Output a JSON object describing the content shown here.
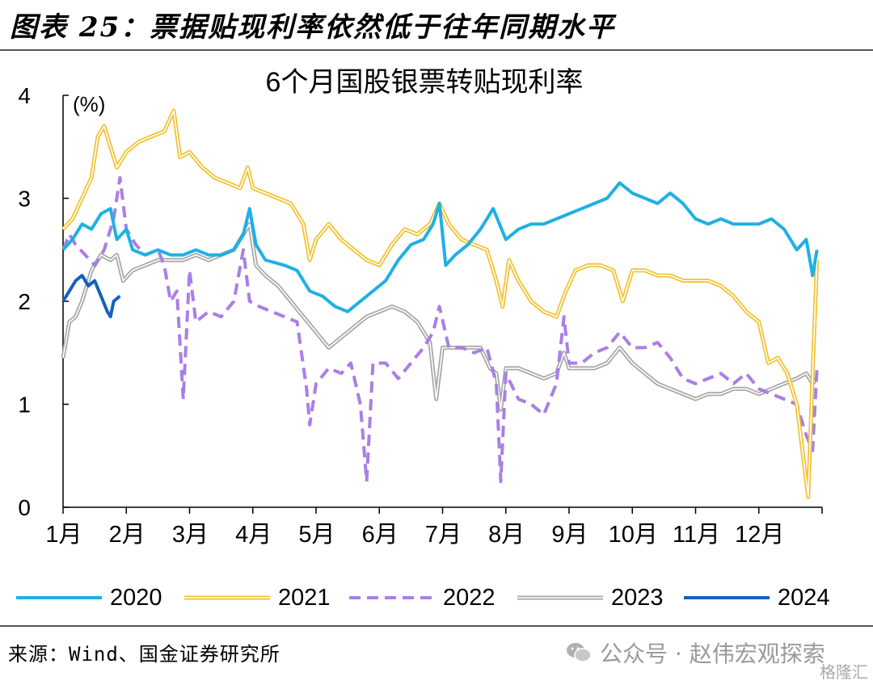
{
  "header": {
    "figure_title": "图表 25：票据贴现利率依然低于往年同期水平"
  },
  "source": "来源：Wind、国金证券研究所",
  "watermark": {
    "text": "公众号 · 赵伟宏观探索",
    "icon": "wechat-icon"
  },
  "logo_text": "格隆汇",
  "chart_data": {
    "type": "line",
    "title": "6个月国股银票转贴现利率",
    "ylabel": "(%)",
    "ylim": [
      0,
      4
    ],
    "yticks": [
      "0",
      "1",
      "2",
      "3",
      "4"
    ],
    "xlim": [
      1,
      13
    ],
    "categories": [
      "1月",
      "2月",
      "3月",
      "4月",
      "5月",
      "6月",
      "7月",
      "8月",
      "9月",
      "10月",
      "11月",
      "12月"
    ],
    "legend_position": "bottom",
    "grid": false,
    "series": [
      {
        "name": "2020",
        "color": "#1fb0e6",
        "style": "solid",
        "points": [
          [
            1.0,
            2.5
          ],
          [
            1.15,
            2.6
          ],
          [
            1.3,
            2.75
          ],
          [
            1.45,
            2.7
          ],
          [
            1.6,
            2.85
          ],
          [
            1.75,
            2.9
          ],
          [
            1.85,
            2.6
          ],
          [
            2.0,
            2.7
          ],
          [
            2.1,
            2.5
          ],
          [
            2.3,
            2.45
          ],
          [
            2.5,
            2.5
          ],
          [
            2.7,
            2.45
          ],
          [
            2.9,
            2.45
          ],
          [
            3.1,
            2.5
          ],
          [
            3.3,
            2.45
          ],
          [
            3.5,
            2.45
          ],
          [
            3.7,
            2.5
          ],
          [
            3.85,
            2.65
          ],
          [
            3.95,
            2.9
          ],
          [
            4.05,
            2.55
          ],
          [
            4.2,
            2.4
          ],
          [
            4.5,
            2.35
          ],
          [
            4.7,
            2.3
          ],
          [
            4.9,
            2.1
          ],
          [
            5.1,
            2.05
          ],
          [
            5.3,
            1.95
          ],
          [
            5.5,
            1.9
          ],
          [
            5.7,
            2.0
          ],
          [
            5.9,
            2.1
          ],
          [
            6.1,
            2.2
          ],
          [
            6.3,
            2.4
          ],
          [
            6.5,
            2.55
          ],
          [
            6.7,
            2.6
          ],
          [
            6.85,
            2.75
          ],
          [
            6.95,
            2.95
          ],
          [
            7.05,
            2.35
          ],
          [
            7.2,
            2.45
          ],
          [
            7.4,
            2.55
          ],
          [
            7.6,
            2.7
          ],
          [
            7.8,
            2.9
          ],
          [
            8.0,
            2.6
          ],
          [
            8.2,
            2.7
          ],
          [
            8.4,
            2.75
          ],
          [
            8.6,
            2.75
          ],
          [
            8.8,
            2.8
          ],
          [
            9.0,
            2.85
          ],
          [
            9.2,
            2.9
          ],
          [
            9.4,
            2.95
          ],
          [
            9.6,
            3.0
          ],
          [
            9.8,
            3.15
          ],
          [
            10.0,
            3.05
          ],
          [
            10.2,
            3.0
          ],
          [
            10.4,
            2.95
          ],
          [
            10.6,
            3.05
          ],
          [
            10.8,
            2.95
          ],
          [
            11.0,
            2.8
          ],
          [
            11.2,
            2.75
          ],
          [
            11.4,
            2.8
          ],
          [
            11.6,
            2.75
          ],
          [
            11.8,
            2.75
          ],
          [
            12.0,
            2.75
          ],
          [
            12.2,
            2.8
          ],
          [
            12.4,
            2.7
          ],
          [
            12.6,
            2.5
          ],
          [
            12.75,
            2.6
          ],
          [
            12.85,
            2.25
          ],
          [
            12.92,
            2.5
          ]
        ]
      },
      {
        "name": "2021",
        "color": "#f2c12e",
        "style": "double",
        "points": [
          [
            1.0,
            2.7
          ],
          [
            1.15,
            2.8
          ],
          [
            1.3,
            3.0
          ],
          [
            1.45,
            3.2
          ],
          [
            1.55,
            3.6
          ],
          [
            1.65,
            3.7
          ],
          [
            1.75,
            3.5
          ],
          [
            1.85,
            3.3
          ],
          [
            2.0,
            3.45
          ],
          [
            2.2,
            3.55
          ],
          [
            2.4,
            3.6
          ],
          [
            2.6,
            3.65
          ],
          [
            2.75,
            3.85
          ],
          [
            2.85,
            3.4
          ],
          [
            3.0,
            3.45
          ],
          [
            3.2,
            3.3
          ],
          [
            3.4,
            3.2
          ],
          [
            3.6,
            3.15
          ],
          [
            3.8,
            3.1
          ],
          [
            3.92,
            3.3
          ],
          [
            4.0,
            3.1
          ],
          [
            4.2,
            3.05
          ],
          [
            4.4,
            3.0
          ],
          [
            4.6,
            2.95
          ],
          [
            4.8,
            2.75
          ],
          [
            4.9,
            2.4
          ],
          [
            5.0,
            2.6
          ],
          [
            5.2,
            2.75
          ],
          [
            5.4,
            2.6
          ],
          [
            5.6,
            2.5
          ],
          [
            5.8,
            2.4
          ],
          [
            6.0,
            2.35
          ],
          [
            6.2,
            2.55
          ],
          [
            6.4,
            2.7
          ],
          [
            6.6,
            2.65
          ],
          [
            6.8,
            2.75
          ],
          [
            6.95,
            2.95
          ],
          [
            7.1,
            2.75
          ],
          [
            7.3,
            2.6
          ],
          [
            7.5,
            2.55
          ],
          [
            7.7,
            2.5
          ],
          [
            7.85,
            2.2
          ],
          [
            7.95,
            1.95
          ],
          [
            8.05,
            2.4
          ],
          [
            8.2,
            2.2
          ],
          [
            8.4,
            2.0
          ],
          [
            8.6,
            1.9
          ],
          [
            8.8,
            1.85
          ],
          [
            8.95,
            2.1
          ],
          [
            9.1,
            2.3
          ],
          [
            9.3,
            2.35
          ],
          [
            9.5,
            2.35
          ],
          [
            9.7,
            2.3
          ],
          [
            9.85,
            2.0
          ],
          [
            10.0,
            2.3
          ],
          [
            10.2,
            2.3
          ],
          [
            10.4,
            2.25
          ],
          [
            10.6,
            2.25
          ],
          [
            10.8,
            2.2
          ],
          [
            11.0,
            2.2
          ],
          [
            11.2,
            2.2
          ],
          [
            11.4,
            2.15
          ],
          [
            11.6,
            2.05
          ],
          [
            11.8,
            1.9
          ],
          [
            12.0,
            1.8
          ],
          [
            12.15,
            1.4
          ],
          [
            12.3,
            1.45
          ],
          [
            12.45,
            1.3
          ],
          [
            12.6,
            1.0
          ],
          [
            12.7,
            0.5
          ],
          [
            12.78,
            0.1
          ],
          [
            12.85,
            1.3
          ],
          [
            12.92,
            2.4
          ]
        ]
      },
      {
        "name": "2022",
        "color": "#a97fe5",
        "style": "dashed",
        "points": [
          [
            1.0,
            2.5
          ],
          [
            1.1,
            2.65
          ],
          [
            1.2,
            2.55
          ],
          [
            1.35,
            2.45
          ],
          [
            1.5,
            2.35
          ],
          [
            1.65,
            2.5
          ],
          [
            1.8,
            2.8
          ],
          [
            1.9,
            3.2
          ],
          [
            2.0,
            2.7
          ],
          [
            2.15,
            2.55
          ],
          [
            2.3,
            2.45
          ],
          [
            2.5,
            2.5
          ],
          [
            2.6,
            2.35
          ],
          [
            2.7,
            2.0
          ],
          [
            2.8,
            2.1
          ],
          [
            2.9,
            1.05
          ],
          [
            3.0,
            2.3
          ],
          [
            3.1,
            1.8
          ],
          [
            3.3,
            1.9
          ],
          [
            3.5,
            1.85
          ],
          [
            3.7,
            2.0
          ],
          [
            3.85,
            2.5
          ],
          [
            3.95,
            2.0
          ],
          [
            4.1,
            1.95
          ],
          [
            4.3,
            1.9
          ],
          [
            4.5,
            1.85
          ],
          [
            4.7,
            1.8
          ],
          [
            4.85,
            1.15
          ],
          [
            4.9,
            0.8
          ],
          [
            5.0,
            1.2
          ],
          [
            5.2,
            1.35
          ],
          [
            5.4,
            1.3
          ],
          [
            5.55,
            1.4
          ],
          [
            5.7,
            1.0
          ],
          [
            5.8,
            0.25
          ],
          [
            5.9,
            1.4
          ],
          [
            6.1,
            1.4
          ],
          [
            6.3,
            1.25
          ],
          [
            6.5,
            1.4
          ],
          [
            6.7,
            1.55
          ],
          [
            6.85,
            1.7
          ],
          [
            6.95,
            1.95
          ],
          [
            7.1,
            1.55
          ],
          [
            7.3,
            1.55
          ],
          [
            7.5,
            1.5
          ],
          [
            7.7,
            1.55
          ],
          [
            7.85,
            1.2
          ],
          [
            7.92,
            0.25
          ],
          [
            8.0,
            1.3
          ],
          [
            8.2,
            1.05
          ],
          [
            8.4,
            1.0
          ],
          [
            8.6,
            0.9
          ],
          [
            8.8,
            1.2
          ],
          [
            8.92,
            1.85
          ],
          [
            9.0,
            1.4
          ],
          [
            9.2,
            1.4
          ],
          [
            9.4,
            1.5
          ],
          [
            9.6,
            1.55
          ],
          [
            9.8,
            1.7
          ],
          [
            10.0,
            1.55
          ],
          [
            10.2,
            1.55
          ],
          [
            10.4,
            1.6
          ],
          [
            10.6,
            1.45
          ],
          [
            10.8,
            1.25
          ],
          [
            11.0,
            1.2
          ],
          [
            11.2,
            1.25
          ],
          [
            11.4,
            1.3
          ],
          [
            11.6,
            1.2
          ],
          [
            11.8,
            1.3
          ],
          [
            12.0,
            1.15
          ],
          [
            12.2,
            1.1
          ],
          [
            12.4,
            1.05
          ],
          [
            12.6,
            1.0
          ],
          [
            12.75,
            0.7
          ],
          [
            12.85,
            0.55
          ],
          [
            12.92,
            1.35
          ]
        ]
      },
      {
        "name": "2023",
        "color": "#a6a6a6",
        "style": "double",
        "points": [
          [
            1.0,
            1.45
          ],
          [
            1.1,
            1.8
          ],
          [
            1.2,
            1.85
          ],
          [
            1.3,
            2.0
          ],
          [
            1.45,
            2.3
          ],
          [
            1.6,
            2.45
          ],
          [
            1.75,
            2.4
          ],
          [
            1.85,
            2.45
          ],
          [
            1.95,
            2.2
          ],
          [
            2.1,
            2.3
          ],
          [
            2.3,
            2.35
          ],
          [
            2.5,
            2.4
          ],
          [
            2.7,
            2.4
          ],
          [
            2.9,
            2.4
          ],
          [
            3.1,
            2.45
          ],
          [
            3.3,
            2.4
          ],
          [
            3.5,
            2.45
          ],
          [
            3.7,
            2.5
          ],
          [
            3.85,
            2.65
          ],
          [
            3.95,
            2.75
          ],
          [
            4.05,
            2.35
          ],
          [
            4.2,
            2.25
          ],
          [
            4.4,
            2.15
          ],
          [
            4.6,
            2.0
          ],
          [
            4.8,
            1.85
          ],
          [
            5.0,
            1.7
          ],
          [
            5.2,
            1.55
          ],
          [
            5.4,
            1.65
          ],
          [
            5.6,
            1.75
          ],
          [
            5.8,
            1.85
          ],
          [
            6.0,
            1.9
          ],
          [
            6.2,
            1.95
          ],
          [
            6.4,
            1.9
          ],
          [
            6.6,
            1.8
          ],
          [
            6.8,
            1.6
          ],
          [
            6.9,
            1.05
          ],
          [
            7.0,
            1.55
          ],
          [
            7.2,
            1.55
          ],
          [
            7.4,
            1.55
          ],
          [
            7.6,
            1.55
          ],
          [
            7.75,
            1.35
          ],
          [
            7.85,
            1.3
          ],
          [
            7.92,
            0.95
          ],
          [
            8.0,
            1.35
          ],
          [
            8.2,
            1.35
          ],
          [
            8.4,
            1.3
          ],
          [
            8.6,
            1.25
          ],
          [
            8.8,
            1.3
          ],
          [
            8.92,
            1.5
          ],
          [
            9.0,
            1.35
          ],
          [
            9.2,
            1.35
          ],
          [
            9.4,
            1.35
          ],
          [
            9.6,
            1.4
          ],
          [
            9.8,
            1.55
          ],
          [
            10.0,
            1.4
          ],
          [
            10.2,
            1.3
          ],
          [
            10.4,
            1.2
          ],
          [
            10.6,
            1.15
          ],
          [
            10.8,
            1.1
          ],
          [
            11.0,
            1.05
          ],
          [
            11.2,
            1.1
          ],
          [
            11.4,
            1.1
          ],
          [
            11.6,
            1.15
          ],
          [
            11.8,
            1.15
          ],
          [
            12.0,
            1.1
          ],
          [
            12.2,
            1.15
          ],
          [
            12.4,
            1.2
          ],
          [
            12.6,
            1.25
          ],
          [
            12.75,
            1.3
          ],
          [
            12.85,
            1.2
          ],
          [
            12.92,
            1.25
          ]
        ]
      },
      {
        "name": "2024",
        "color": "#1560bd",
        "style": "solid",
        "points": [
          [
            1.0,
            2.0
          ],
          [
            1.1,
            2.1
          ],
          [
            1.2,
            2.2
          ],
          [
            1.3,
            2.25
          ],
          [
            1.4,
            2.15
          ],
          [
            1.5,
            2.2
          ],
          [
            1.6,
            2.05
          ],
          [
            1.7,
            1.9
          ],
          [
            1.75,
            1.85
          ],
          [
            1.8,
            2.0
          ],
          [
            1.9,
            2.05
          ]
        ]
      }
    ]
  }
}
